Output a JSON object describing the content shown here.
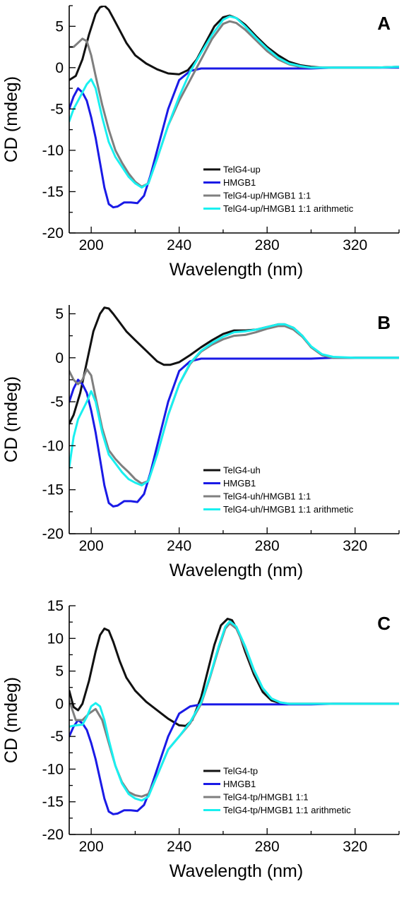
{
  "colors": {
    "black": "#111111",
    "blue": "#1a1ae6",
    "gray": "#7f7f7f",
    "cyan": "#19f0f0"
  },
  "chart_data": [
    {
      "type": "line",
      "panel": "A",
      "xlabel": "Wavelength (nm)",
      "ylabel": "CD (mdeg)",
      "xlim": [
        190,
        340
      ],
      "ylim": [
        -20,
        7.5
      ],
      "xticks": [
        200,
        240,
        280,
        320
      ],
      "yticks": [
        -20,
        -15,
        -10,
        -5,
        0,
        5
      ],
      "legend_position": "bottom-right",
      "series": [
        {
          "name": "TelG4-up",
          "color": "black",
          "x": [
            190,
            193,
            196,
            199,
            202,
            204,
            206,
            208,
            210,
            213,
            216,
            220,
            225,
            230,
            235,
            240,
            244,
            248,
            252,
            256,
            260,
            263,
            266,
            270,
            275,
            280,
            285,
            290,
            295,
            300,
            305,
            310,
            320,
            330,
            340
          ],
          "y": [
            -1.5,
            -1,
            1,
            4,
            6.5,
            7.3,
            7.5,
            7,
            6,
            4.5,
            3,
            1.5,
            0.5,
            -0.2,
            -0.7,
            -0.8,
            -0.3,
            1,
            3,
            5,
            6.1,
            6.3,
            6.0,
            5.2,
            3.8,
            2.5,
            1.5,
            0.7,
            0.3,
            0.1,
            0,
            0,
            0,
            0,
            0.1
          ]
        },
        {
          "name": "HMGB1",
          "color": "blue",
          "x": [
            190,
            192,
            194,
            196,
            198,
            200,
            202,
            204,
            206,
            208,
            210,
            212,
            215,
            218,
            221,
            224,
            227,
            230,
            235,
            240,
            245,
            250,
            260,
            270,
            280,
            290,
            300,
            310,
            320,
            330,
            340
          ],
          "y": [
            -5,
            -3.5,
            -2.5,
            -3,
            -4,
            -6,
            -8.5,
            -11.5,
            -14.5,
            -16.5,
            -16.9,
            -16.8,
            -16.3,
            -16.3,
            -16.4,
            -15.5,
            -13,
            -10,
            -5,
            -1.5,
            -0.4,
            -0.1,
            -0.1,
            -0.1,
            -0.1,
            -0.1,
            -0.1,
            0,
            0,
            0,
            0
          ]
        },
        {
          "name": "TelG4-up/HMGB1 1:1",
          "color": "gray",
          "x": [
            190,
            192,
            194,
            196,
            198,
            200,
            202,
            205,
            208,
            211,
            214,
            217,
            220,
            223,
            226,
            230,
            235,
            240,
            245,
            250,
            255,
            260,
            263,
            266,
            270,
            275,
            280,
            285,
            290,
            295,
            300,
            310,
            320,
            330,
            340
          ],
          "y": [
            2.5,
            2.5,
            3,
            3.5,
            3.2,
            1.5,
            -1,
            -4.5,
            -7.5,
            -10,
            -11.5,
            -12.8,
            -13.8,
            -14.4,
            -14,
            -11,
            -7,
            -4,
            -1.5,
            1,
            3.5,
            5.3,
            5.6,
            5.4,
            4.6,
            3.3,
            2,
            1,
            0.4,
            0.1,
            0,
            0,
            0,
            0,
            0.1
          ]
        },
        {
          "name": "TelG4-up/HMGB1 1:1 arithmetic",
          "color": "cyan",
          "x": [
            190,
            192,
            194,
            196,
            198,
            200,
            202,
            205,
            208,
            211,
            214,
            217,
            220,
            223,
            226,
            230,
            235,
            240,
            245,
            250,
            255,
            260,
            263,
            266,
            270,
            275,
            280,
            285,
            290,
            295,
            300,
            310,
            320,
            330,
            340
          ],
          "y": [
            -6.5,
            -5,
            -4,
            -3,
            -2,
            -1.4,
            -2.5,
            -6,
            -9,
            -10.8,
            -12,
            -13.2,
            -14,
            -14.5,
            -14,
            -11,
            -7,
            -3.5,
            -0.5,
            1.8,
            4,
            5.8,
            6.2,
            6,
            5,
            3.6,
            2.3,
            1.2,
            0.5,
            0.2,
            0,
            0,
            0,
            0,
            0.1
          ]
        }
      ],
      "legend": [
        "TelG4-up",
        "HMGB1",
        "TelG4-up/HMGB1 1:1",
        "TelG4-up/HMGB1 1:1 arithmetic"
      ]
    },
    {
      "type": "line",
      "panel": "B",
      "xlabel": "Wavelength (nm)",
      "ylabel": "CD (mdeg)",
      "xlim": [
        190,
        340
      ],
      "ylim": [
        -20,
        6
      ],
      "xticks": [
        200,
        240,
        280,
        320
      ],
      "yticks": [
        -20,
        -15,
        -10,
        -5,
        0,
        5
      ],
      "legend_position": "bottom-right",
      "series": [
        {
          "name": "TelG4-uh",
          "color": "black",
          "x": [
            190,
            192,
            195,
            198,
            201,
            204,
            206,
            208,
            210,
            213,
            216,
            220,
            225,
            230,
            233,
            236,
            240,
            245,
            250,
            255,
            260,
            265,
            270,
            275,
            280,
            285,
            288,
            292,
            296,
            300,
            305,
            310,
            320,
            330,
            340
          ],
          "y": [
            -7.5,
            -6.5,
            -4,
            -0.5,
            3,
            5,
            5.7,
            5.6,
            5,
            4,
            3,
            2,
            0.8,
            -0.4,
            -0.8,
            -0.8,
            -0.5,
            0.3,
            1.2,
            2,
            2.7,
            3.1,
            3.1,
            3.2,
            3.5,
            3.8,
            3.8,
            3.4,
            2.5,
            1.2,
            0.3,
            0,
            0,
            0,
            0
          ]
        },
        {
          "name": "HMGB1",
          "color": "blue",
          "x": [
            190,
            192,
            194,
            196,
            198,
            200,
            202,
            204,
            206,
            208,
            210,
            212,
            215,
            218,
            221,
            224,
            227,
            230,
            235,
            240,
            245,
            250,
            260,
            270,
            280,
            290,
            300,
            310,
            320,
            330,
            340
          ],
          "y": [
            -5,
            -3.5,
            -2.5,
            -3,
            -4,
            -6,
            -8.5,
            -11.5,
            -14.5,
            -16.5,
            -16.9,
            -16.8,
            -16.3,
            -16.3,
            -16.4,
            -15.5,
            -13,
            -10,
            -5,
            -1.5,
            -0.4,
            -0.1,
            -0.1,
            -0.1,
            -0.1,
            -0.1,
            -0.1,
            0,
            0,
            0,
            0
          ]
        },
        {
          "name": "TelG4-uh/HMGB1 1:1",
          "color": "gray",
          "x": [
            190,
            192,
            194,
            196,
            198,
            200,
            202,
            205,
            208,
            211,
            214,
            217,
            220,
            223,
            226,
            230,
            235,
            240,
            245,
            250,
            255,
            260,
            265,
            270,
            275,
            280,
            285,
            288,
            292,
            296,
            300,
            305,
            310,
            320,
            340
          ],
          "y": [
            -1.5,
            -2.5,
            -3,
            -2.5,
            -1.3,
            -2,
            -4.5,
            -8,
            -10.5,
            -11.5,
            -12.3,
            -13,
            -13.8,
            -14.3,
            -14,
            -11,
            -6.5,
            -3,
            -0.7,
            0.7,
            1.5,
            2.1,
            2.5,
            2.6,
            2.9,
            3.3,
            3.6,
            3.6,
            3.2,
            2.4,
            1.2,
            0.3,
            0,
            0,
            0
          ]
        },
        {
          "name": "TelG4-uh/HMGB1 1:1 arithmetic",
          "color": "cyan",
          "x": [
            190,
            192,
            194,
            196,
            198,
            200,
            202,
            205,
            208,
            211,
            214,
            217,
            220,
            223,
            226,
            230,
            235,
            240,
            245,
            250,
            255,
            260,
            265,
            270,
            275,
            280,
            285,
            288,
            292,
            296,
            300,
            305,
            310,
            320,
            340
          ],
          "y": [
            -12.5,
            -9,
            -7,
            -6,
            -5,
            -3.8,
            -5,
            -8.5,
            -11,
            -12,
            -13,
            -13.8,
            -14.2,
            -14.5,
            -14,
            -11,
            -6.5,
            -3,
            -0.6,
            0.8,
            1.7,
            2.4,
            2.9,
            3,
            3.2,
            3.5,
            3.8,
            3.8,
            3.4,
            2.5,
            1.3,
            0.4,
            0.1,
            0,
            0
          ]
        }
      ],
      "legend": [
        "TelG4-uh",
        "HMGB1",
        "TelG4-uh/HMGB1 1:1",
        "TelG4-uh/HMGB1 1:1 arithmetic"
      ]
    },
    {
      "type": "line",
      "panel": "C",
      "xlabel": "Wavelength (nm)",
      "ylabel": "CD (mdeg)",
      "xlim": [
        190,
        340
      ],
      "ylim": [
        -20,
        15
      ],
      "xticks": [
        200,
        240,
        280,
        320
      ],
      "yticks": [
        -20,
        -15,
        -10,
        -5,
        0,
        5,
        10,
        15
      ],
      "legend_position": "bottom-right",
      "series": [
        {
          "name": "TelG4-tp",
          "color": "black",
          "x": [
            190,
            192,
            194,
            196,
            199,
            202,
            204,
            206,
            208,
            210,
            213,
            216,
            220,
            225,
            230,
            235,
            240,
            243,
            246,
            250,
            253,
            256,
            259,
            262,
            264,
            267,
            270,
            274,
            278,
            282,
            286,
            290,
            300,
            320,
            340
          ],
          "y": [
            2,
            -0.5,
            -1,
            0,
            3.5,
            8,
            10.5,
            11.5,
            11.2,
            9.5,
            6.5,
            4,
            2,
            0.3,
            -1,
            -2.3,
            -3.3,
            -3.4,
            -2.5,
            1,
            5,
            9,
            12,
            13,
            12.8,
            11,
            8,
            4.5,
            1.8,
            0.5,
            0.1,
            0,
            0,
            0,
            0
          ]
        },
        {
          "name": "HMGB1",
          "color": "blue",
          "x": [
            190,
            192,
            194,
            196,
            198,
            200,
            202,
            204,
            206,
            208,
            210,
            212,
            215,
            218,
            221,
            224,
            227,
            230,
            235,
            240,
            245,
            250,
            260,
            270,
            280,
            290,
            300,
            310,
            320,
            330,
            340
          ],
          "y": [
            -5,
            -3.5,
            -2.5,
            -3,
            -4,
            -6,
            -8.5,
            -11.5,
            -14.5,
            -16.5,
            -16.9,
            -16.8,
            -16.3,
            -16.3,
            -16.4,
            -15.5,
            -13,
            -10,
            -5,
            -1.5,
            -0.4,
            -0.1,
            -0.1,
            -0.1,
            -0.1,
            -0.1,
            -0.1,
            0,
            0,
            0,
            0
          ]
        },
        {
          "name": "TelG4-tp/HMGB1 1:1",
          "color": "gray",
          "x": [
            190,
            193,
            196,
            199,
            202,
            205,
            208,
            211,
            214,
            217,
            220,
            223,
            226,
            230,
            235,
            240,
            245,
            250,
            254,
            258,
            261,
            263,
            266,
            270,
            274,
            278,
            282,
            286,
            290,
            300,
            320,
            340
          ],
          "y": [
            0.5,
            -2.5,
            -2.5,
            -1.5,
            -0.8,
            -2.5,
            -6,
            -9.5,
            -12,
            -13.5,
            -14,
            -14.2,
            -13.8,
            -11,
            -7,
            -5,
            -3,
            0,
            4,
            8.5,
            11.5,
            12.3,
            11.5,
            8.5,
            5,
            2.3,
            0.8,
            0.2,
            0,
            0,
            0,
            0
          ]
        },
        {
          "name": "TelG4-tp/HMGB1 1:1 arithmetic",
          "color": "cyan",
          "x": [
            190,
            193,
            196,
            198,
            200,
            202,
            204,
            206,
            208,
            211,
            214,
            217,
            220,
            223,
            226,
            230,
            235,
            240,
            245,
            250,
            254,
            258,
            261,
            263,
            266,
            270,
            274,
            278,
            282,
            286,
            290,
            300,
            320,
            340
          ],
          "y": [
            -3.5,
            -3.3,
            -3.2,
            -2,
            -0.4,
            0.1,
            -0.4,
            -2.5,
            -5.5,
            -9.5,
            -12.2,
            -13.8,
            -14.5,
            -14.8,
            -14.2,
            -11,
            -7,
            -5,
            -2.8,
            0.2,
            4.2,
            8.8,
            11.8,
            12.6,
            11.8,
            8.8,
            5.2,
            2.4,
            0.8,
            0.2,
            0,
            0,
            0,
            0
          ]
        }
      ],
      "legend": [
        "TelG4-tp",
        "HMGB1",
        "TelG4-tp/HMGB1 1:1",
        "TelG4-tp/HMGB1 1:1 arithmetic"
      ]
    }
  ]
}
